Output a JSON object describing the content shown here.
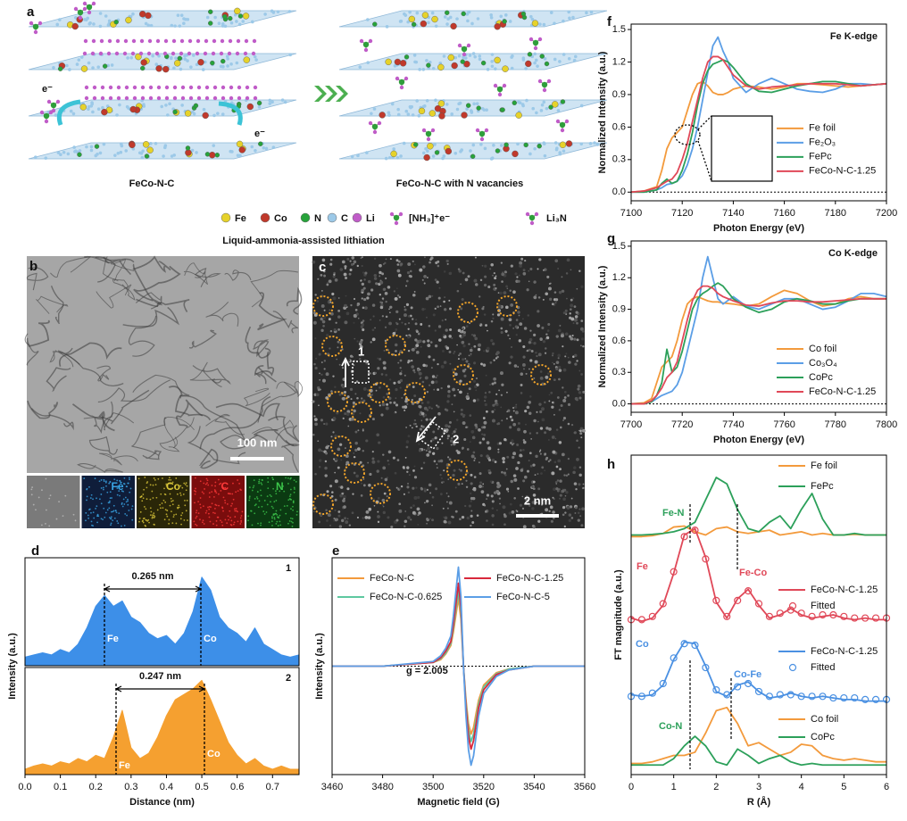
{
  "panel_a": {
    "label": "a",
    "left_title": "FeCo-N-C",
    "right_title": "FeCo-N-C with N vacancies",
    "electron": "e⁻",
    "legend": [
      "Fe",
      "Co",
      "N",
      "C",
      "Li",
      "[NH₃]⁺e⁻",
      "Li₃N"
    ],
    "caption": "Liquid-ammonia-assisted lithiation"
  },
  "panel_b": {
    "label": "b",
    "scale_bar": "100 nm",
    "maps": [
      "Fe",
      "Co",
      "C",
      "N"
    ]
  },
  "panel_c": {
    "label": "c",
    "regions": [
      "1",
      "2"
    ],
    "scale_bar": "2 nm"
  },
  "chart_data": [
    {
      "type": "area",
      "panel": "d",
      "tag": "1",
      "annotation": "0.265 nm",
      "peak_labels": [
        "Fe",
        "Co"
      ],
      "x": [
        0,
        0.025,
        0.05,
        0.075,
        0.1,
        0.125,
        0.15,
        0.175,
        0.2,
        0.225,
        0.25,
        0.275,
        0.3,
        0.325,
        0.35,
        0.375,
        0.4,
        0.425,
        0.45,
        0.475,
        0.5,
        0.525,
        0.55,
        0.575,
        0.6,
        0.625,
        0.65,
        0.675,
        0.7,
        0.725,
        0.75,
        0.775
      ],
      "values": [
        0.08,
        0.1,
        0.12,
        0.1,
        0.15,
        0.12,
        0.2,
        0.35,
        0.55,
        0.65,
        0.55,
        0.6,
        0.45,
        0.4,
        0.3,
        0.25,
        0.28,
        0.2,
        0.3,
        0.5,
        0.82,
        0.7,
        0.45,
        0.35,
        0.3,
        0.22,
        0.35,
        0.2,
        0.15,
        0.1,
        0.08,
        0.1
      ],
      "color": "#3d8fe8",
      "xlim": [
        0,
        0.775
      ],
      "ylim": [
        0,
        1
      ],
      "ylabel": "Intensity (a.u.)"
    },
    {
      "type": "area",
      "tag": "2",
      "annotation": "0.247 nm",
      "peak_labels": [
        "Fe",
        "Co"
      ],
      "x": [
        0,
        0.025,
        0.05,
        0.075,
        0.1,
        0.125,
        0.15,
        0.175,
        0.2,
        0.225,
        0.25,
        0.275,
        0.3,
        0.325,
        0.35,
        0.375,
        0.4,
        0.425,
        0.45,
        0.475,
        0.5,
        0.525,
        0.55,
        0.575,
        0.6,
        0.625,
        0.65,
        0.675,
        0.7,
        0.725,
        0.75,
        0.775
      ],
      "values": [
        0.05,
        0.08,
        0.1,
        0.08,
        0.12,
        0.1,
        0.15,
        0.12,
        0.18,
        0.15,
        0.35,
        0.6,
        0.25,
        0.15,
        0.2,
        0.35,
        0.55,
        0.7,
        0.75,
        0.8,
        0.88,
        0.7,
        0.5,
        0.3,
        0.18,
        0.1,
        0.15,
        0.08,
        0.05,
        0.08,
        0.05,
        0.05
      ],
      "color": "#f5a030",
      "xlim": [
        0,
        0.775
      ],
      "ylim": [
        0,
        1
      ],
      "xticks": [
        {
          "value": 0,
          "label": "0.0"
        },
        0.1,
        0.2,
        0.3,
        0.4,
        0.5,
        0.6,
        0.7
      ],
      "xlabel": "Distance (nm)"
    },
    {
      "type": "line",
      "panel": "e",
      "annotation": "g = 2.005",
      "legend_position": "upper",
      "x": [
        3460,
        3480,
        3500,
        3503,
        3505,
        3507,
        3508,
        3509,
        3510,
        3511,
        3512,
        3513,
        3514,
        3515,
        3516,
        3517,
        3518,
        3520,
        3525,
        3530,
        3540,
        3560
      ],
      "series": [
        {
          "name": "FeCo-N-C",
          "color": "#f39a3c",
          "values": [
            0,
            0,
            0.04,
            0.07,
            0.13,
            0.22,
            0.36,
            0.54,
            0.72,
            0.5,
            0,
            -0.36,
            -0.61,
            -0.72,
            -0.65,
            -0.5,
            -0.36,
            -0.2,
            -0.07,
            -0.03,
            0,
            0
          ]
        },
        {
          "name": "FeCo-N-C-0.625",
          "color": "#5ec8a0",
          "values": [
            0,
            0,
            0.04,
            0.08,
            0.14,
            0.24,
            0.4,
            0.6,
            0.8,
            0.56,
            0,
            -0.4,
            -0.68,
            -0.8,
            -0.72,
            -0.56,
            -0.4,
            -0.22,
            -0.08,
            -0.03,
            0,
            0
          ]
        },
        {
          "name": "FeCo-N-C-1.25",
          "color": "#d8283c",
          "values": [
            0,
            0,
            0.04,
            0.09,
            0.16,
            0.26,
            0.44,
            0.66,
            0.88,
            0.62,
            0,
            -0.44,
            -0.75,
            -0.88,
            -0.79,
            -0.62,
            -0.44,
            -0.25,
            -0.09,
            -0.04,
            0,
            0
          ]
        },
        {
          "name": "FeCo-N-C-5",
          "color": "#5b9ee6",
          "values": [
            0,
            0,
            0.05,
            0.11,
            0.19,
            0.32,
            0.53,
            0.79,
            1.05,
            0.74,
            0,
            -0.53,
            -0.89,
            -1.05,
            -0.95,
            -0.74,
            -0.53,
            -0.29,
            -0.11,
            -0.04,
            0,
            0
          ]
        }
      ],
      "xlim": [
        3460,
        3560
      ],
      "ylim": [
        -1.15,
        1.15
      ],
      "xticks": [
        3460,
        3480,
        3500,
        3520,
        3540,
        3560
      ],
      "xlabel": "Magnetic field (G)",
      "ylabel": "Intensity (a.u.)"
    },
    {
      "type": "line",
      "panel": "f",
      "title": "Fe K-edge",
      "legend_position": "right",
      "x": [
        7100,
        7105,
        7110,
        7112,
        7114,
        7116,
        7118,
        7120,
        7122,
        7124,
        7126,
        7128,
        7130,
        7132,
        7134,
        7136,
        7138,
        7140,
        7145,
        7150,
        7155,
        7160,
        7165,
        7170,
        7175,
        7180,
        7185,
        7190,
        7195,
        7200
      ],
      "series": [
        {
          "name": "Fe foil",
          "color": "#f39a3c",
          "values": [
            0,
            0.01,
            0.05,
            0.2,
            0.4,
            0.5,
            0.55,
            0.6,
            0.75,
            0.9,
            1.0,
            1.02,
            0.98,
            0.92,
            0.9,
            0.9,
            0.92,
            0.95,
            0.98,
            0.97,
            0.95,
            0.97,
            1.0,
            1.0,
            0.99,
            0.98,
            0.97,
            0.98,
            0.99,
            1.0
          ]
        },
        {
          "name": "Fe₂O₃",
          "color": "#5b9ee6",
          "values": [
            0,
            0,
            0.02,
            0.04,
            0.07,
            0.08,
            0.1,
            0.15,
            0.25,
            0.4,
            0.6,
            0.85,
            1.1,
            1.35,
            1.43,
            1.3,
            1.2,
            1.05,
            0.92,
            1.0,
            1.05,
            1.0,
            0.95,
            0.93,
            0.92,
            0.95,
            1.0,
            1.0,
            0.99,
            1.0
          ]
        },
        {
          "name": "FePc",
          "color": "#2ca05a",
          "values": [
            0,
            0,
            0.02,
            0.08,
            0.12,
            0.08,
            0.1,
            0.2,
            0.35,
            0.55,
            0.8,
            1.0,
            1.12,
            1.18,
            1.2,
            1.22,
            1.2,
            1.15,
            1.0,
            0.93,
            0.92,
            0.95,
            0.98,
            1.0,
            1.02,
            1.02,
            1.0,
            0.98,
            0.99,
            1.0
          ]
        },
        {
          "name": "FeCo-N-C-1.25",
          "color": "#e04858",
          "values": [
            0,
            0.01,
            0.04,
            0.07,
            0.1,
            0.12,
            0.18,
            0.3,
            0.45,
            0.65,
            0.85,
            1.05,
            1.2,
            1.25,
            1.25,
            1.22,
            1.15,
            1.08,
            0.98,
            0.95,
            0.97,
            0.98,
            0.99,
            1.0,
            1.0,
            1.0,
            0.99,
            0.98,
            0.99,
            1.0
          ]
        }
      ],
      "xlim": [
        7100,
        7200
      ],
      "ylim": [
        -0.08,
        1.55
      ],
      "xticks": [
        7100,
        7120,
        7140,
        7160,
        7180,
        7200
      ],
      "yticks": [
        {
          "value": 0,
          "label": "0.0"
        },
        0.3,
        0.6,
        0.9,
        1.2,
        1.5
      ],
      "xlabel": "Photon Energy (eV)",
      "ylabel": "Normalized Intensity (a.u.)"
    },
    {
      "type": "line",
      "panel": "g",
      "title": "Co K-edge",
      "legend_position": "lower right",
      "x": [
        7700,
        7705,
        7708,
        7710,
        7712,
        7714,
        7716,
        7718,
        7720,
        7722,
        7724,
        7726,
        7728,
        7730,
        7732,
        7734,
        7736,
        7740,
        7745,
        7750,
        7755,
        7760,
        7765,
        7770,
        7775,
        7780,
        7785,
        7790,
        7795,
        7800
      ],
      "series": [
        {
          "name": "Co foil",
          "color": "#f39a3c",
          "values": [
            0,
            0.01,
            0.05,
            0.2,
            0.35,
            0.4,
            0.45,
            0.6,
            0.8,
            0.95,
            1.0,
            1.02,
            1.0,
            0.98,
            0.97,
            0.97,
            0.96,
            0.95,
            0.93,
            0.95,
            1.02,
            1.08,
            1.05,
            0.98,
            0.93,
            0.95,
            1.0,
            1.02,
            1.0,
            1.0
          ]
        },
        {
          "name": "Co₃O₄",
          "color": "#5b9ee6",
          "values": [
            0,
            0,
            0.02,
            0.05,
            0.08,
            0.1,
            0.12,
            0.18,
            0.3,
            0.5,
            0.7,
            0.9,
            1.2,
            1.4,
            1.2,
            1.0,
            0.95,
            1.02,
            0.93,
            0.9,
            0.95,
            1.0,
            1.0,
            0.95,
            0.9,
            0.92,
            0.98,
            1.05,
            1.05,
            1.02
          ]
        },
        {
          "name": "CoPc",
          "color": "#2ca05a",
          "values": [
            0,
            0,
            0.02,
            0.08,
            0.2,
            0.52,
            0.3,
            0.35,
            0.5,
            0.7,
            0.9,
            1.0,
            1.05,
            1.08,
            1.12,
            1.15,
            1.12,
            1.0,
            0.92,
            0.87,
            0.9,
            0.97,
            1.0,
            0.98,
            0.95,
            0.95,
            0.98,
            1.0,
            1.0,
            1.0
          ]
        },
        {
          "name": "FeCo-N-C-1.25",
          "color": "#e04858",
          "values": [
            0,
            0,
            0.03,
            0.08,
            0.15,
            0.25,
            0.3,
            0.4,
            0.6,
            0.8,
            0.98,
            1.08,
            1.12,
            1.12,
            1.1,
            1.05,
            1.02,
            0.98,
            0.94,
            0.93,
            0.96,
            0.98,
            0.98,
            0.97,
            0.97,
            0.98,
            0.99,
            1.0,
            1.0,
            1.0
          ]
        }
      ],
      "xlim": [
        7700,
        7800
      ],
      "ylim": [
        -0.08,
        1.55
      ],
      "xticks": [
        7700,
        7720,
        7740,
        7760,
        7780,
        7800
      ],
      "yticks": [
        {
          "value": 0,
          "label": "0.0"
        },
        0.3,
        0.6,
        0.9,
        1.2,
        1.5
      ],
      "xlabel": "Photon Energy (eV)",
      "ylabel": "Normalized Intensity (a.u.)"
    },
    {
      "type": "line",
      "panel": "h",
      "annotations": [
        "Fe-N",
        "Fe",
        "Fe-Co",
        "Co",
        "Co-Fe",
        "Co-N"
      ],
      "x": [
        0,
        0.25,
        0.5,
        0.75,
        1,
        1.25,
        1.5,
        1.75,
        2,
        2.25,
        2.5,
        2.75,
        3,
        3.25,
        3.5,
        3.75,
        4,
        4.25,
        4.5,
        4.75,
        5,
        5.25,
        5.5,
        5.75,
        6
      ],
      "series": [
        {
          "name": "Fe foil",
          "color": "#f39a3c",
          "values": [
            7.45,
            7.45,
            7.48,
            7.55,
            7.75,
            7.78,
            7.6,
            7.5,
            7.7,
            7.75,
            7.6,
            7.55,
            7.6,
            7.65,
            7.5,
            7.55,
            7.6,
            7.5,
            7.55,
            7.5,
            7.5,
            7.52,
            7.5,
            7.5,
            7.5
          ]
        },
        {
          "name": "FePc",
          "color": "#2ca05a",
          "values": [
            7.5,
            7.5,
            7.52,
            7.55,
            7.6,
            7.7,
            7.9,
            8.6,
            9.3,
            9.1,
            8.3,
            7.7,
            7.6,
            7.9,
            8.1,
            7.7,
            8.3,
            8.8,
            8.0,
            7.5,
            7.5,
            7.55,
            7.5,
            7.5,
            7.5
          ]
        },
        {
          "name": "FeCo-N-C-1.25",
          "color": "#e04858",
          "values": [
            4.9,
            4.8,
            4.9,
            5.3,
            6.3,
            7.5,
            7.7,
            6.8,
            5.4,
            4.9,
            5.5,
            5.8,
            5.3,
            4.9,
            5.0,
            5.2,
            5.0,
            4.9,
            4.95,
            5.0,
            4.9,
            4.85,
            4.9,
            4.85,
            4.85
          ]
        },
        {
          "name": "Fitted",
          "color": "#e04858",
          "style": "scatter",
          "values": [
            4.85,
            4.85,
            4.95,
            5.35,
            6.35,
            7.45,
            7.65,
            6.75,
            5.45,
            4.95,
            5.45,
            5.75,
            5.35,
            4.95,
            5.05,
            5.15,
            5.05,
            4.95,
            5.0,
            5.0,
            4.95,
            4.9,
            4.9,
            4.9,
            4.9
          ]
        },
        {
          "name": "FeCo-N-C-1.25",
          "color": "#4a90e2",
          "values": [
            2.5,
            2.45,
            2.5,
            2.8,
            3.6,
            4.15,
            4.1,
            3.4,
            2.6,
            2.45,
            2.8,
            2.9,
            2.6,
            2.4,
            2.45,
            2.55,
            2.45,
            2.4,
            2.45,
            2.4,
            2.35,
            2.35,
            2.3,
            2.3,
            2.3
          ]
        },
        {
          "name": "Fitted",
          "color": "#4a90e2",
          "style": "scatter",
          "values": [
            2.45,
            2.45,
            2.55,
            2.85,
            3.65,
            4.1,
            4.05,
            3.35,
            2.65,
            2.5,
            2.75,
            2.85,
            2.6,
            2.45,
            2.5,
            2.5,
            2.45,
            2.45,
            2.45,
            2.4,
            2.4,
            2.4,
            2.35,
            2.35,
            2.35
          ]
        },
        {
          "name": "Co foil",
          "color": "#f39a3c",
          "values": [
            0.35,
            0.35,
            0.4,
            0.5,
            0.6,
            0.6,
            0.7,
            1.3,
            2.0,
            2.1,
            1.6,
            0.9,
            1.0,
            0.8,
            0.6,
            0.7,
            0.95,
            0.9,
            0.6,
            0.5,
            0.45,
            0.5,
            0.45,
            0.4,
            0.4
          ]
        },
        {
          "name": "CoPc",
          "color": "#2ca05a",
          "values": [
            0.3,
            0.3,
            0.3,
            0.3,
            0.5,
            0.9,
            1.2,
            0.9,
            0.4,
            0.3,
            0.8,
            0.6,
            0.35,
            0.5,
            0.6,
            0.4,
            0.3,
            0.35,
            0.3,
            0.3,
            0.3,
            0.3,
            0.3,
            0.3,
            0.3
          ]
        }
      ],
      "xlim": [
        0,
        6
      ],
      "ylim": [
        0,
        10
      ],
      "xticks": [
        0,
        1,
        2,
        3,
        4,
        5,
        6
      ],
      "xlabel": "R (Å)",
      "ylabel": "FT magnitude (a.u.)"
    }
  ]
}
